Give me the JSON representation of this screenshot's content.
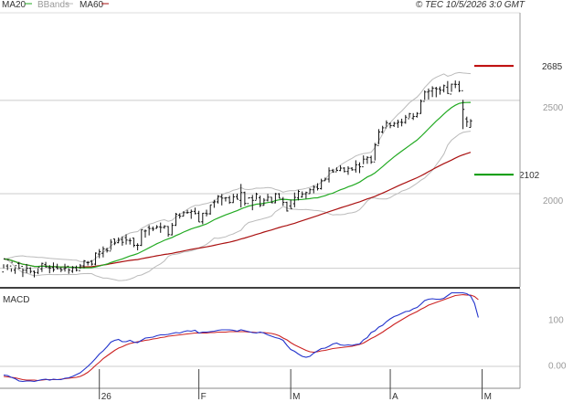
{
  "header": {
    "legend": [
      {
        "label": "MA20",
        "color": "#22aa22"
      },
      {
        "label": "BBands",
        "color": "#bbbbbb"
      },
      {
        "label": "MA60",
        "color": "#aa1111"
      }
    ],
    "copyright": "© TEC 10/5/2026 3:0 GMT"
  },
  "colors": {
    "price": "#111111",
    "ma20": "#22aa22",
    "ma60": "#aa1111",
    "bbands": "#bbbbbb",
    "macd": "#2233cc",
    "signal": "#cc2222",
    "grid": "#cccccc",
    "target_up": "#bb0000",
    "target_down": "#009900"
  },
  "chart_data": [
    {
      "type": "ohlc",
      "title": "",
      "y_ticks": [
        "2500",
        "2000"
      ],
      "y_tick_values": [
        2500,
        2000
      ],
      "ylim": [
        1500,
        2970
      ],
      "x_ticks": [
        "26",
        "F",
        "M",
        "A",
        "M"
      ],
      "x_tick_index": [
        25,
        51,
        75,
        101,
        125
      ],
      "indicators": [
        "MA20",
        "BBands",
        "MA60"
      ],
      "target_high": {
        "label": "2685",
        "value": 2685
      },
      "target_low": {
        "label": "2102",
        "value": 2102
      },
      "bars": [
        [
          1580,
          1650,
          1600,
          1621
        ],
        [
          1612,
          1645,
          1590,
          1622
        ],
        [
          1612,
          1632,
          1581,
          1599
        ],
        [
          1590,
          1614,
          1570,
          1605
        ],
        [
          1625,
          1600,
          1596,
          1634
        ],
        [
          1610,
          1589,
          1553,
          1599
        ],
        [
          1589,
          1600,
          1573,
          1623
        ],
        [
          1600,
          1583,
          1572,
          1605
        ],
        [
          1583,
          1577,
          1551,
          1588
        ],
        [
          1577,
          1606,
          1568,
          1600
        ],
        [
          1596,
          1626,
          1580,
          1630
        ],
        [
          1620,
          1607,
          1603,
          1634
        ],
        [
          1603,
          1601,
          1573,
          1617
        ],
        [
          1604,
          1592,
          1580,
          1631
        ],
        [
          1606,
          1598,
          1594,
          1624
        ],
        [
          1598,
          1591,
          1579,
          1605
        ],
        [
          1597,
          1601,
          1582,
          1624
        ],
        [
          1611,
          1590,
          1570,
          1600
        ],
        [
          1584,
          1603,
          1575,
          1612
        ],
        [
          1603,
          1589,
          1583,
          1614
        ],
        [
          1587,
          1613,
          1597,
          1623
        ],
        [
          1613,
          1640,
          1600,
          1644
        ],
        [
          1630,
          1630,
          1615,
          1639
        ],
        [
          1638,
          1622,
          1614,
          1644
        ],
        [
          1622,
          1681,
          1616,
          1685
        ],
        [
          1676,
          1689,
          1654,
          1703
        ],
        [
          1680,
          1704,
          1658,
          1717
        ],
        [
          1701,
          1694,
          1684,
          1710
        ],
        [
          1692,
          1740,
          1698,
          1756
        ],
        [
          1757,
          1735,
          1724,
          1758
        ],
        [
          1737,
          1750,
          1734,
          1765
        ],
        [
          1754,
          1739,
          1721,
          1771
        ],
        [
          1764,
          1751,
          1727,
          1782
        ],
        [
          1749,
          1748,
          1727,
          1762
        ],
        [
          1762,
          1723,
          1713,
          1763
        ],
        [
          1723,
          1723,
          1696,
          1734
        ],
        [
          1723,
          1807,
          1719,
          1808
        ],
        [
          1799,
          1800,
          1764,
          1808
        ],
        [
          1819,
          1813,
          1776,
          1831
        ],
        [
          1813,
          1810,
          1799,
          1824
        ],
        [
          1814,
          1822,
          1812,
          1831
        ],
        [
          1822,
          1819,
          1790,
          1845
        ],
        [
          1819,
          1825,
          1812,
          1831
        ],
        [
          1824,
          1781,
          1769,
          1826
        ],
        [
          1779,
          1830,
          1776,
          1843
        ],
        [
          1830,
          1890,
          1827,
          1897
        ],
        [
          1885,
          1879,
          1866,
          1895
        ],
        [
          1879,
          1898,
          1878,
          1906
        ],
        [
          1898,
          1899,
          1892,
          1913
        ],
        [
          1899,
          1905,
          1865,
          1915
        ],
        [
          1905,
          1893,
          1889,
          1925
        ],
        [
          1895,
          1848,
          1848,
          1908
        ],
        [
          1849,
          1895,
          1836,
          1897
        ],
        [
          1895,
          1892,
          1878,
          1914
        ],
        [
          1892,
          1940,
          1887,
          1940
        ],
        [
          1952,
          1956,
          1924,
          1967
        ],
        [
          1956,
          1986,
          1947,
          1992
        ],
        [
          1982,
          1976,
          1937,
          1998
        ],
        [
          1976,
          1978,
          1958,
          1982
        ],
        [
          1978,
          1953,
          1945,
          1989
        ],
        [
          1952,
          1983,
          1950,
          1999
        ],
        [
          1984,
          1970,
          1969,
          2000
        ],
        [
          1964,
          2006,
          1926,
          2052
        ],
        [
          2006,
          1948,
          1936,
          2011
        ],
        [
          1947,
          1978,
          1973,
          1980
        ],
        [
          1978,
          1964,
          1911,
          1993
        ],
        [
          1964,
          1998,
          1968,
          2005
        ],
        [
          1978,
          1937,
          1928,
          1990
        ],
        [
          1937,
          1965,
          1936,
          1976
        ],
        [
          1965,
          1981,
          1958,
          1999
        ],
        [
          1981,
          1951,
          1949,
          1982
        ],
        [
          1951,
          1999,
          1948,
          2004
        ],
        [
          1999,
          1975,
          1975,
          2003
        ],
        [
          1971,
          1953,
          1935,
          1982
        ],
        [
          1953,
          1907,
          1904,
          1957
        ],
        [
          1934,
          1920,
          1920,
          1968
        ],
        [
          1946,
          1980,
          1927,
          2006
        ],
        [
          1977,
          2012,
          1964,
          2020
        ],
        [
          1982,
          1998,
          1979,
          2012
        ],
        [
          1999,
          2006,
          1973,
          2011
        ],
        [
          2000,
          2021,
          1999,
          2029
        ],
        [
          2021,
          2035,
          2002,
          2045
        ],
        [
          2035,
          2027,
          2017,
          2056
        ],
        [
          2027,
          2069,
          2022,
          2080
        ],
        [
          2069,
          2078,
          2069,
          2086
        ],
        [
          2078,
          2123,
          2060,
          2141
        ],
        [
          2125,
          2117,
          2112,
          2133
        ],
        [
          2117,
          2125,
          2121,
          2141
        ],
        [
          2124,
          2137,
          2121,
          2152
        ],
        [
          2137,
          2119,
          2114,
          2142
        ],
        [
          2119,
          2136,
          2101,
          2147
        ],
        [
          2136,
          2128,
          2123,
          2142
        ],
        [
          2128,
          2155,
          2113,
          2179
        ],
        [
          2155,
          2144,
          2110,
          2168
        ],
        [
          2144,
          2185,
          2158,
          2205
        ],
        [
          2185,
          2194,
          2160,
          2201
        ],
        [
          2194,
          2170,
          2160,
          2204
        ],
        [
          2170,
          2262,
          2178,
          2272
        ],
        [
          2258,
          2331,
          2265,
          2346
        ],
        [
          2331,
          2353,
          2324,
          2364
        ],
        [
          2353,
          2380,
          2358,
          2393
        ],
        [
          2375,
          2365,
          2351,
          2382
        ],
        [
          2365,
          2377,
          2358,
          2385
        ],
        [
          2377,
          2383,
          2353,
          2397
        ],
        [
          2383,
          2382,
          2361,
          2402
        ],
        [
          2382,
          2410,
          2375,
          2422
        ],
        [
          2402,
          2429,
          2407,
          2433
        ],
        [
          2405,
          2414,
          2395,
          2432
        ],
        [
          2414,
          2430,
          2408,
          2437
        ],
        [
          2430,
          2495,
          2428,
          2505
        ],
        [
          2495,
          2545,
          2503,
          2554
        ],
        [
          2545,
          2550,
          2505,
          2564
        ],
        [
          2550,
          2565,
          2518,
          2576
        ],
        [
          2565,
          2562,
          2517,
          2573
        ],
        [
          2562,
          2555,
          2531,
          2575
        ],
        [
          2555,
          2579,
          2543,
          2585
        ],
        [
          2571,
          2537,
          2535,
          2604
        ],
        [
          2534,
          2587,
          2546,
          2590
        ],
        [
          2587,
          2586,
          2566,
          2607
        ],
        [
          2586,
          2552,
          2545,
          2604
        ],
        [
          2552,
          2452,
          2346,
          2503
        ],
        [
          2401,
          2386,
          2358,
          2413
        ],
        [
          2355,
          2390,
          2355,
          2400
        ]
      ]
    },
    {
      "type": "line",
      "title": "MACD",
      "y_ticks": [
        "100",
        "0.00"
      ],
      "y_tick_values": [
        100,
        0
      ],
      "ylim": [
        -47,
        163
      ],
      "series": [
        {
          "name": "MACD",
          "values": [
            -22,
            -23,
            -27,
            -30,
            -35,
            -36,
            -35,
            -35,
            -36,
            -34,
            -32,
            -31,
            -33,
            -31,
            -32,
            -32,
            -29,
            -28,
            -25,
            -21,
            -17,
            -10,
            -3,
            5,
            14,
            24,
            31,
            40,
            50,
            54,
            56,
            51,
            51,
            54,
            50,
            49,
            54,
            59,
            60,
            61,
            64,
            66,
            66,
            67,
            69,
            71,
            70,
            73,
            75,
            74,
            76,
            70,
            72,
            72,
            73,
            74,
            76,
            77,
            77,
            77,
            76,
            74,
            77,
            75,
            73,
            71,
            70,
            72,
            70,
            66,
            63,
            60,
            58,
            54,
            43,
            34,
            30,
            24,
            19,
            17,
            19,
            26,
            31,
            36,
            37,
            41,
            46,
            48,
            44,
            43,
            44,
            43,
            45,
            46,
            55,
            60,
            71,
            75,
            83,
            87,
            95,
            101,
            106,
            109,
            113,
            117,
            118,
            123,
            126,
            133,
            141,
            144,
            145,
            144,
            144,
            146,
            152,
            158,
            158,
            158,
            158,
            156,
            151,
            135,
            104
          ]
        },
        {
          "name": "Signal",
          "values": [
            -25,
            -26,
            -27,
            -28,
            -30,
            -32,
            -33,
            -33,
            -33,
            -34,
            -33,
            -32,
            -32,
            -32,
            -32,
            -31,
            -30,
            -29,
            -28,
            -27,
            -25,
            -21,
            -16,
            -9,
            -1,
            6,
            14,
            20,
            26,
            32,
            37,
            40,
            44,
            47,
            49,
            51,
            52,
            54,
            55,
            57,
            58,
            60,
            61,
            63,
            64,
            65,
            66,
            67,
            68,
            69,
            70,
            70,
            70,
            70,
            71,
            71,
            72,
            72,
            72,
            73,
            73,
            73,
            73,
            73,
            72,
            72,
            71,
            71,
            71,
            70,
            69,
            67,
            64,
            59,
            55,
            49,
            44,
            40,
            36,
            32,
            29,
            28,
            29,
            31,
            32,
            34,
            36,
            37,
            38,
            39,
            40,
            41,
            43,
            45,
            48,
            53,
            58,
            62,
            67,
            72,
            78,
            83,
            89,
            94,
            99,
            104,
            109,
            113,
            117,
            122,
            126,
            131,
            134,
            137,
            140,
            143,
            146,
            149,
            152,
            153,
            154,
            153,
            153,
            150,
            143
          ]
        }
      ]
    }
  ]
}
